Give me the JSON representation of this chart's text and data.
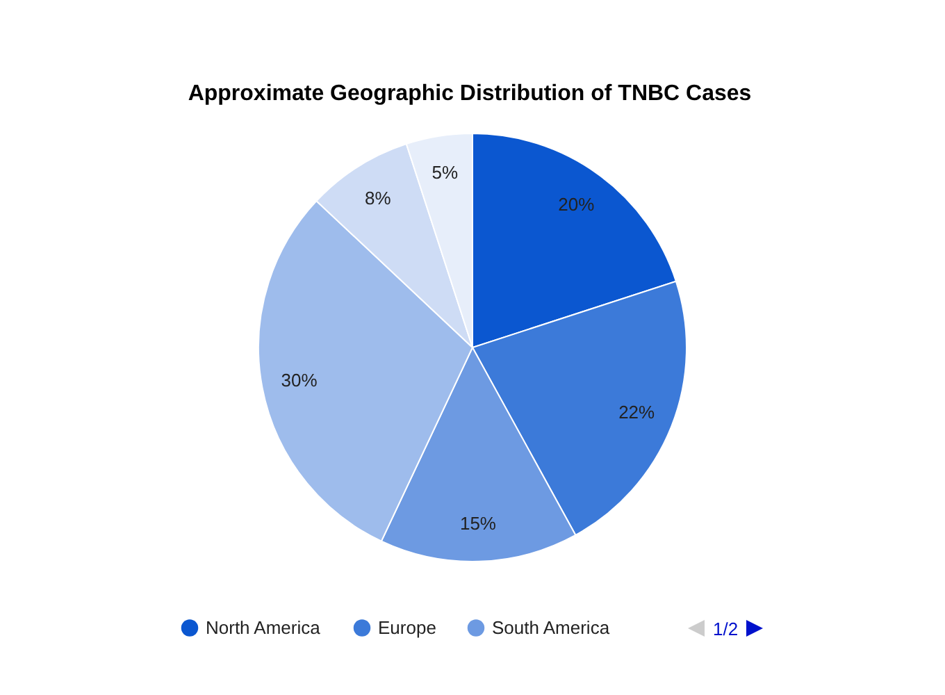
{
  "chart_data": {
    "type": "pie",
    "title": "Approximate Geographic Distribution of TNBC Cases",
    "categories": [
      "North America",
      "Europe",
      "South America",
      null,
      null,
      null
    ],
    "values": [
      20,
      22,
      15,
      30,
      8,
      5
    ],
    "colors": [
      "#0b57d0",
      "#3c7ad9",
      "#6d9ae2",
      "#9ebcec",
      "#cedcf5",
      "#e7eefa"
    ],
    "value_labels": [
      "20%",
      "22%",
      "15%",
      "30%",
      "8%",
      "5%"
    ],
    "legend": "bottom",
    "annotations": [
      "1/2"
    ]
  }
}
